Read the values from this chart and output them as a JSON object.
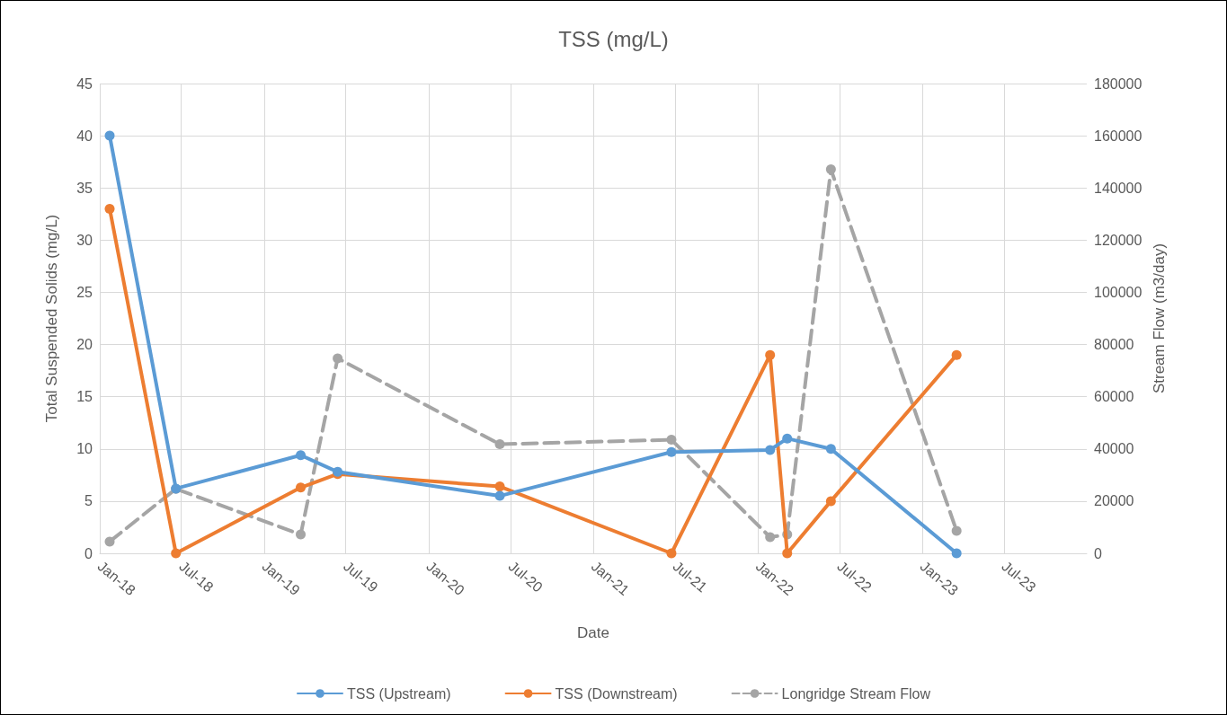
{
  "chart_data": {
    "type": "line",
    "title": "TSS (mg/L)",
    "xlabel": "Date",
    "ylabel": "Total Suspended Solids (mg/L)",
    "y2label": "Stream Flow (m3/day)",
    "x": [
      "2018-01-23",
      "2018-06-19",
      "2019-03-23",
      "2019-06-13",
      "2020-06-07",
      "2021-06-23",
      "2022-01-28",
      "2022-03-07",
      "2022-06-12",
      "2023-03-18"
    ],
    "series": [
      {
        "name": "TSS (Upstream)",
        "color": "#5b9bd5",
        "values": [
          40,
          6.2,
          9.4,
          7.8,
          5.5,
          9.7,
          9.9,
          11,
          10,
          0
        ]
      },
      {
        "name": "TSS (Downstream)",
        "color": "#ed7d31",
        "values": [
          33,
          0,
          6.3,
          7.6,
          6.4,
          0,
          19,
          0,
          5,
          19
        ]
      },
      {
        "name": "Longridge Stream Flow",
        "color": "#a5a5a5",
        "axis": "y2",
        "line_style": "dashed",
        "values": [
          4500,
          24700,
          7200,
          74700,
          41800,
          43500,
          6200,
          7200,
          147100,
          8600
        ]
      }
    ],
    "xlim": [
      "2018-01-01",
      "2024-01-01"
    ],
    "xticks": [
      {
        "value": "2018-01",
        "label": "Jan-18"
      },
      {
        "value": "2018-07",
        "label": "Jul-18"
      },
      {
        "value": "2019-01",
        "label": "Jan-19"
      },
      {
        "value": "2019-07",
        "label": "Jul-19"
      },
      {
        "value": "2020-01",
        "label": "Jan-20"
      },
      {
        "value": "2020-07",
        "label": "Jul-20"
      },
      {
        "value": "2021-01",
        "label": "Jan-21"
      },
      {
        "value": "2021-07",
        "label": "Jul-21"
      },
      {
        "value": "2022-01",
        "label": "Jan-22"
      },
      {
        "value": "2022-07",
        "label": "Jul-22"
      },
      {
        "value": "2023-01",
        "label": "Jan-23"
      },
      {
        "value": "2023-07",
        "label": "Jul-23"
      }
    ],
    "ylim": [
      0,
      45
    ],
    "yticks": [
      0,
      5,
      10,
      15,
      20,
      25,
      30,
      35,
      40,
      45
    ],
    "y2lim": [
      0,
      180000
    ],
    "y2ticks": [
      0,
      20000,
      40000,
      60000,
      80000,
      100000,
      120000,
      140000,
      160000,
      180000
    ],
    "grid": true,
    "legend": "bottom",
    "marker": "circle",
    "line_style": "solid"
  }
}
